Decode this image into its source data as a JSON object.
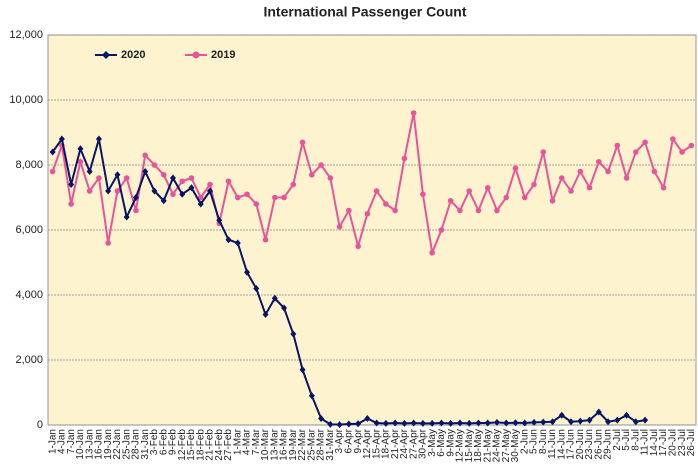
{
  "chart_data": {
    "type": "line",
    "title": "International Passenger Count",
    "categories": [
      "1-Jan",
      "4-Jan",
      "7-Jan",
      "10-Jan",
      "13-Jan",
      "16-Jan",
      "19-Jan",
      "22-Jan",
      "25-Jan",
      "28-Jan",
      "31-Jan",
      "3-Feb",
      "6-Feb",
      "9-Feb",
      "12-Feb",
      "15-Feb",
      "18-Feb",
      "21-Feb",
      "24-Feb",
      "27-Feb",
      "1-Mar",
      "4-Mar",
      "7-Mar",
      "10-Mar",
      "13-Mar",
      "16-Mar",
      "19-Mar",
      "22-Mar",
      "25-Mar",
      "28-Mar",
      "31-Mar",
      "3-Apr",
      "6-Apr",
      "9-Apr",
      "12-Apr",
      "15-Apr",
      "18-Apr",
      "21-Apr",
      "24-Apr",
      "27-Apr",
      "30-Apr",
      "3-May",
      "6-May",
      "9-May",
      "12-May",
      "15-May",
      "18-May",
      "21-May",
      "24-May",
      "27-May",
      "30-May",
      "2-Jun",
      "5-Jun",
      "8-Jun",
      "11-Jun",
      "14-Jun",
      "17-Jun",
      "20-Jun",
      "23-Jun",
      "26-Jun",
      "29-Jun",
      "2-Jul",
      "5-Jul",
      "8-Jul",
      "11-Jul",
      "14-Jul",
      "17-Jul",
      "20-Jul",
      "23-Jul",
      "26-Jul"
    ],
    "series": [
      {
        "name": "2020",
        "color": "#0a1466",
        "marker": "diamond",
        "values": [
          8400,
          8800,
          7400,
          8500,
          7800,
          8800,
          7200,
          7700,
          6400,
          7000,
          7800,
          7200,
          6900,
          7600,
          7100,
          7300,
          6800,
          7200,
          6300,
          5700,
          5600,
          4700,
          4200,
          3400,
          3900,
          3600,
          2800,
          1700,
          900,
          200,
          20,
          10,
          30,
          40,
          200,
          60,
          50,
          60,
          50,
          60,
          50,
          50,
          60,
          50,
          60,
          50,
          60,
          60,
          80,
          60,
          70,
          60,
          80,
          90,
          100,
          300,
          100,
          120,
          150,
          400,
          100,
          150,
          300,
          100,
          150,
          null,
          null,
          null,
          null,
          null
        ]
      },
      {
        "name": "2019",
        "color": "#e6559a",
        "marker": "circle",
        "values": [
          7800,
          8600,
          6800,
          8100,
          7200,
          7600,
          5600,
          7200,
          7600,
          6600,
          8300,
          8000,
          7700,
          7100,
          7500,
          7600,
          7000,
          7400,
          6200,
          7500,
          7000,
          7100,
          6800,
          5700,
          7000,
          7000,
          7400,
          8700,
          7700,
          8000,
          7600,
          6100,
          6600,
          5500,
          6500,
          7200,
          6800,
          6600,
          8200,
          9600,
          7100,
          5300,
          6000,
          6900,
          6600,
          7200,
          6600,
          7300,
          6600,
          7000,
          7900,
          7000,
          7400,
          8400,
          6900,
          7600,
          7200,
          7800,
          7300,
          8100,
          7800,
          8600,
          7600,
          8400,
          8700,
          7800,
          7300,
          8800,
          8400,
          8600
        ]
      }
    ],
    "ylim": [
      0,
      12000
    ],
    "yticks": [
      0,
      {
        "value": 2000,
        "label": "2,000"
      },
      {
        "value": 4000,
        "label": "4,000"
      },
      {
        "value": 6000,
        "label": "6,000"
      },
      {
        "value": 8000,
        "label": "8,000"
      },
      {
        "value": 10000,
        "label": "10,000"
      },
      {
        "value": 12000,
        "label": "12,000"
      }
    ],
    "grid": true,
    "legend": "upper-left",
    "plot_background": "#fdf3cf"
  }
}
